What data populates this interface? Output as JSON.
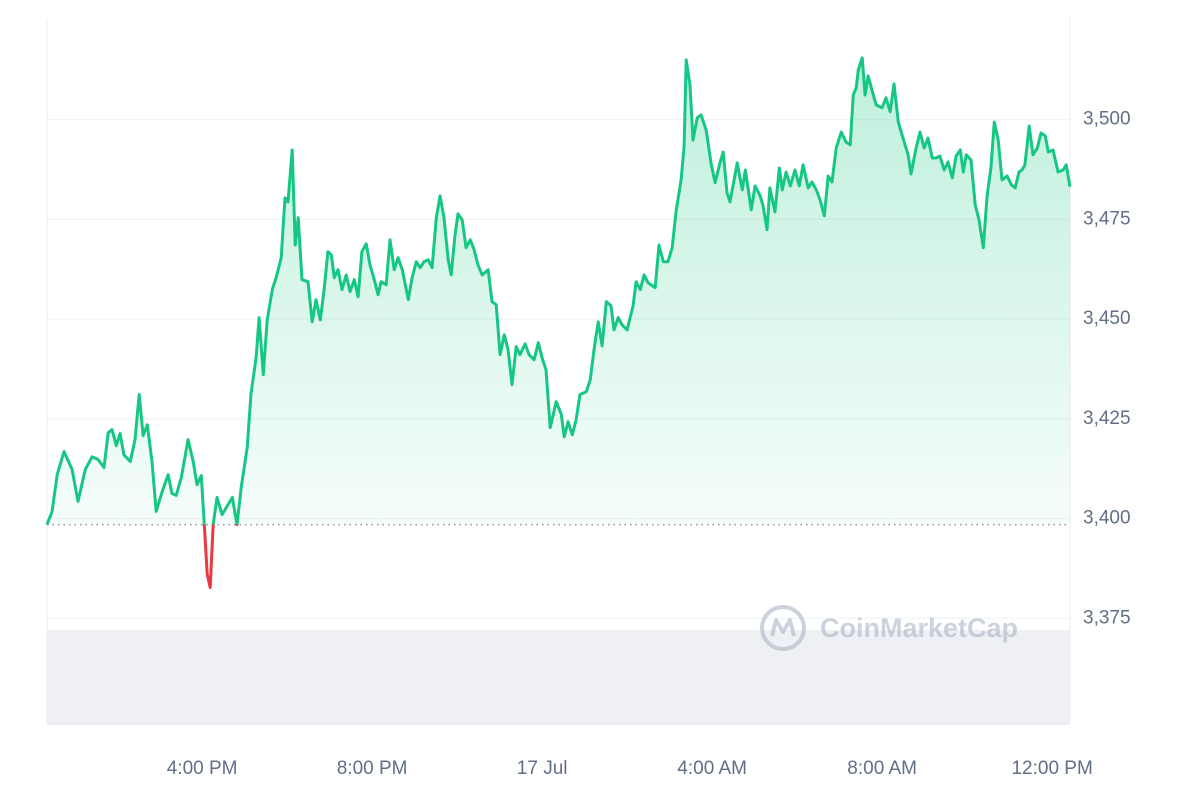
{
  "chart_data": {
    "type": "line",
    "watermark": "CoinMarketCap",
    "color": "#16c784",
    "negative_color": "#ea3943",
    "baseline": 3398.5,
    "grid": true,
    "xlim": [
      12.35,
      36.42
    ],
    "xticks": [
      {
        "value": 16,
        "label": "4:00 PM"
      },
      {
        "value": 20,
        "label": "8:00 PM"
      },
      {
        "value": 24,
        "label": "17 Jul"
      },
      {
        "value": 28,
        "label": "4:00 AM"
      },
      {
        "value": 32,
        "label": "8:00 AM"
      },
      {
        "value": 36,
        "label": "12:00 PM"
      }
    ],
    "ylim": [
      3348.5,
      3525.5
    ],
    "yticks": [
      {
        "value": 3375,
        "label": "3,375"
      },
      {
        "value": 3400,
        "label": "3,400"
      },
      {
        "value": 3425,
        "label": "3,425"
      },
      {
        "value": 3450,
        "label": "3,450"
      },
      {
        "value": 3475,
        "label": "3,475"
      },
      {
        "value": 3500,
        "label": "3,500"
      }
    ],
    "x": [
      12.35,
      12.47,
      12.59,
      12.75,
      12.94,
      13.08,
      13.25,
      13.41,
      13.55,
      13.69,
      13.79,
      13.88,
      13.98,
      14.07,
      14.16,
      14.31,
      14.42,
      14.52,
      14.61,
      14.71,
      14.82,
      14.92,
      15.06,
      15.2,
      15.29,
      15.39,
      15.51,
      15.67,
      15.79,
      15.88,
      15.98,
      16.05,
      16.12,
      16.19,
      16.26,
      16.35,
      16.47,
      16.61,
      16.71,
      16.82,
      16.92,
      17.06,
      17.15,
      17.27,
      17.34,
      17.44,
      17.53,
      17.65,
      17.74,
      17.86,
      17.95,
      18.02,
      18.12,
      18.19,
      18.26,
      18.35,
      18.49,
      18.59,
      18.68,
      18.78,
      18.87,
      18.96,
      19.04,
      19.11,
      19.2,
      19.29,
      19.39,
      19.48,
      19.58,
      19.67,
      19.76,
      19.86,
      19.95,
      20.05,
      20.14,
      20.21,
      20.33,
      20.42,
      20.52,
      20.61,
      20.71,
      20.85,
      20.94,
      21.04,
      21.13,
      21.22,
      21.32,
      21.41,
      21.51,
      21.6,
      21.69,
      21.79,
      21.86,
      21.95,
      22.02,
      22.12,
      22.21,
      22.31,
      22.4,
      22.49,
      22.59,
      22.73,
      22.82,
      22.92,
      23.01,
      23.11,
      23.2,
      23.29,
      23.39,
      23.48,
      23.6,
      23.69,
      23.81,
      23.91,
      24.0,
      24.09,
      24.19,
      24.33,
      24.45,
      24.52,
      24.61,
      24.71,
      24.8,
      24.89,
      25.04,
      25.13,
      25.22,
      25.32,
      25.41,
      25.51,
      25.62,
      25.69,
      25.79,
      25.88,
      26.0,
      26.14,
      26.21,
      26.31,
      26.4,
      26.49,
      26.66,
      26.75,
      26.85,
      26.96,
      27.06,
      27.15,
      27.27,
      27.34,
      27.39,
      27.48,
      27.55,
      27.65,
      27.74,
      27.86,
      27.98,
      28.07,
      28.19,
      28.26,
      28.35,
      28.42,
      28.49,
      28.59,
      28.71,
      28.78,
      28.85,
      28.92,
      29.01,
      29.13,
      29.2,
      29.29,
      29.36,
      29.48,
      29.58,
      29.65,
      29.74,
      29.84,
      29.95,
      30.05,
      30.14,
      30.26,
      30.35,
      30.45,
      30.54,
      30.64,
      30.73,
      30.82,
      30.92,
      31.04,
      31.15,
      31.25,
      31.32,
      31.39,
      31.44,
      31.53,
      31.6,
      31.67,
      31.76,
      31.86,
      32.0,
      32.09,
      32.19,
      32.28,
      32.38,
      32.49,
      32.61,
      32.68,
      32.8,
      32.89,
      32.99,
      33.08,
      33.18,
      33.27,
      33.36,
      33.46,
      33.55,
      33.65,
      33.74,
      33.84,
      33.91,
      33.98,
      34.09,
      34.19,
      34.28,
      34.38,
      34.47,
      34.56,
      34.64,
      34.73,
      34.82,
      34.94,
      35.04,
      35.13,
      35.22,
      35.29,
      35.36,
      35.46,
      35.55,
      35.65,
      35.74,
      35.84,
      35.91,
      36.02,
      36.14,
      36.26,
      36.33,
      36.42
    ],
    "values": [
      3398.5,
      3401.8,
      3411.0,
      3416.8,
      3412.3,
      3404.3,
      3412.3,
      3415.5,
      3414.8,
      3412.8,
      3421.5,
      3422.3,
      3418.3,
      3421.3,
      3416.0,
      3414.3,
      3419.8,
      3431.1,
      3420.8,
      3423.5,
      3414.3,
      3401.8,
      3406.8,
      3411.0,
      3406.3,
      3405.8,
      3410.3,
      3419.8,
      3414.3,
      3408.5,
      3410.8,
      3398.5,
      3386.0,
      3382.7,
      3398.5,
      3405.3,
      3401.0,
      3403.5,
      3405.3,
      3398.5,
      3407.8,
      3417.8,
      3431.3,
      3440.3,
      3450.4,
      3436.1,
      3449.8,
      3457.4,
      3460.4,
      3465.4,
      3480.4,
      3479.4,
      3492.4,
      3468.6,
      3475.4,
      3459.9,
      3459.4,
      3449.3,
      3454.9,
      3449.8,
      3457.4,
      3466.9,
      3466.1,
      3460.4,
      3462.4,
      3457.4,
      3461.1,
      3456.9,
      3459.9,
      3455.6,
      3466.9,
      3468.9,
      3463.6,
      3459.9,
      3456.1,
      3459.4,
      3458.6,
      3469.9,
      3462.4,
      3465.4,
      3462.4,
      3454.9,
      3460.4,
      3464.4,
      3462.9,
      3464.4,
      3464.9,
      3462.9,
      3475.4,
      3480.9,
      3475.4,
      3464.9,
      3461.1,
      3471.1,
      3476.4,
      3474.9,
      3467.9,
      3469.9,
      3467.4,
      3463.6,
      3461.1,
      3462.4,
      3454.4,
      3453.6,
      3441.1,
      3446.1,
      3442.3,
      3433.6,
      3443.1,
      3441.1,
      3443.8,
      3441.1,
      3439.8,
      3444.1,
      3440.3,
      3437.3,
      3422.8,
      3429.3,
      3426.1,
      3420.5,
      3424.3,
      3421.0,
      3424.8,
      3431.1,
      3431.8,
      3434.8,
      3442.3,
      3449.3,
      3443.3,
      3454.4,
      3453.4,
      3447.3,
      3450.4,
      3448.6,
      3447.3,
      3453.4,
      3459.4,
      3457.4,
      3461.1,
      3459.1,
      3457.9,
      3468.6,
      3464.4,
      3464.4,
      3467.9,
      3476.9,
      3484.9,
      3493.4,
      3515.0,
      3508.7,
      3494.9,
      3500.5,
      3501.2,
      3497.4,
      3488.7,
      3484.2,
      3489.4,
      3491.9,
      3481.7,
      3479.4,
      3483.4,
      3489.2,
      3482.4,
      3487.4,
      3482.4,
      3477.4,
      3483.4,
      3480.9,
      3478.4,
      3472.4,
      3482.9,
      3476.9,
      3487.9,
      3482.4,
      3486.9,
      3483.4,
      3487.4,
      3483.4,
      3488.7,
      3482.9,
      3484.4,
      3482.4,
      3479.9,
      3475.9,
      3485.9,
      3484.4,
      3492.9,
      3496.9,
      3494.4,
      3493.7,
      3506.2,
      3508.0,
      3512.5,
      3515.5,
      3506.2,
      3511.0,
      3507.5,
      3503.7,
      3503.0,
      3505.5,
      3502.0,
      3509.0,
      3499.4,
      3495.4,
      3491.2,
      3486.4,
      3492.9,
      3496.9,
      3492.9,
      3495.4,
      3490.4,
      3490.4,
      3490.9,
      3487.4,
      3489.4,
      3485.4,
      3490.9,
      3492.4,
      3486.9,
      3491.2,
      3489.9,
      3478.7,
      3474.9,
      3467.9,
      3480.9,
      3487.9,
      3499.4,
      3494.9,
      3484.9,
      3485.9,
      3483.7,
      3482.9,
      3486.9,
      3487.4,
      3488.7,
      3498.4,
      3491.2,
      3492.9,
      3496.7,
      3495.9,
      3491.9,
      3492.4,
      3486.9,
      3487.4,
      3488.7,
      3483.2
    ]
  }
}
